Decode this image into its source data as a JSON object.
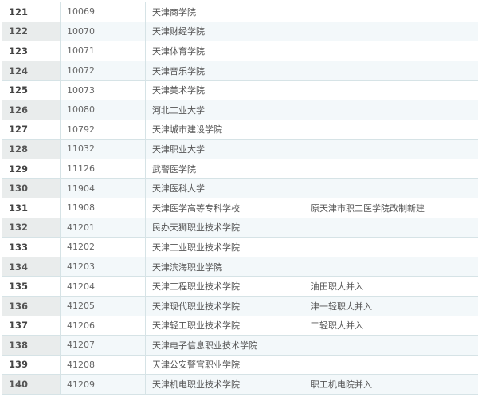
{
  "rows": [
    {
      "no": "121",
      "code": "10069",
      "name": "天津商学院",
      "note": ""
    },
    {
      "no": "122",
      "code": "10070",
      "name": "天津财经学院",
      "note": ""
    },
    {
      "no": "123",
      "code": "10071",
      "name": "天津体育学院",
      "note": ""
    },
    {
      "no": "124",
      "code": "10072",
      "name": "天津音乐学院",
      "note": ""
    },
    {
      "no": "125",
      "code": "10073",
      "name": "天津美术学院",
      "note": ""
    },
    {
      "no": "126",
      "code": "10080",
      "name": "河北工业大学",
      "note": ""
    },
    {
      "no": "127",
      "code": "10792",
      "name": "天津城市建设学院",
      "note": ""
    },
    {
      "no": "128",
      "code": "11032",
      "name": "天津职业大学",
      "note": ""
    },
    {
      "no": "129",
      "code": "11126",
      "name": "武警医学院",
      "note": ""
    },
    {
      "no": "130",
      "code": "11904",
      "name": "天津医科大学",
      "note": ""
    },
    {
      "no": "131",
      "code": "11908",
      "name": "天津医学高等专科学校",
      "note": "原天津市职工医学院改制新建"
    },
    {
      "no": "132",
      "code": "41201",
      "name": "民办天狮职业技术学院",
      "note": ""
    },
    {
      "no": "133",
      "code": "41202",
      "name": "天津工业职业技术学院",
      "note": ""
    },
    {
      "no": "134",
      "code": "41203",
      "name": "天津滨海职业学院",
      "note": ""
    },
    {
      "no": "135",
      "code": "41204",
      "name": "天津工程职业技术学院",
      "note": "油田职大并入"
    },
    {
      "no": "136",
      "code": "41205",
      "name": "天津现代职业技术学院",
      "note": "津一轻职大并入"
    },
    {
      "no": "137",
      "code": "41206",
      "name": "天津轻工职业技术学院",
      "note": "二轻职大并入"
    },
    {
      "no": "138",
      "code": "41207",
      "name": "天津电子信息职业技术学院",
      "note": ""
    },
    {
      "no": "139",
      "code": "41208",
      "name": "天津公安警官职业学院",
      "note": ""
    },
    {
      "no": "140",
      "code": "41209",
      "name": "天津机电职业技术学院",
      "note": "职工机电院并入"
    }
  ]
}
